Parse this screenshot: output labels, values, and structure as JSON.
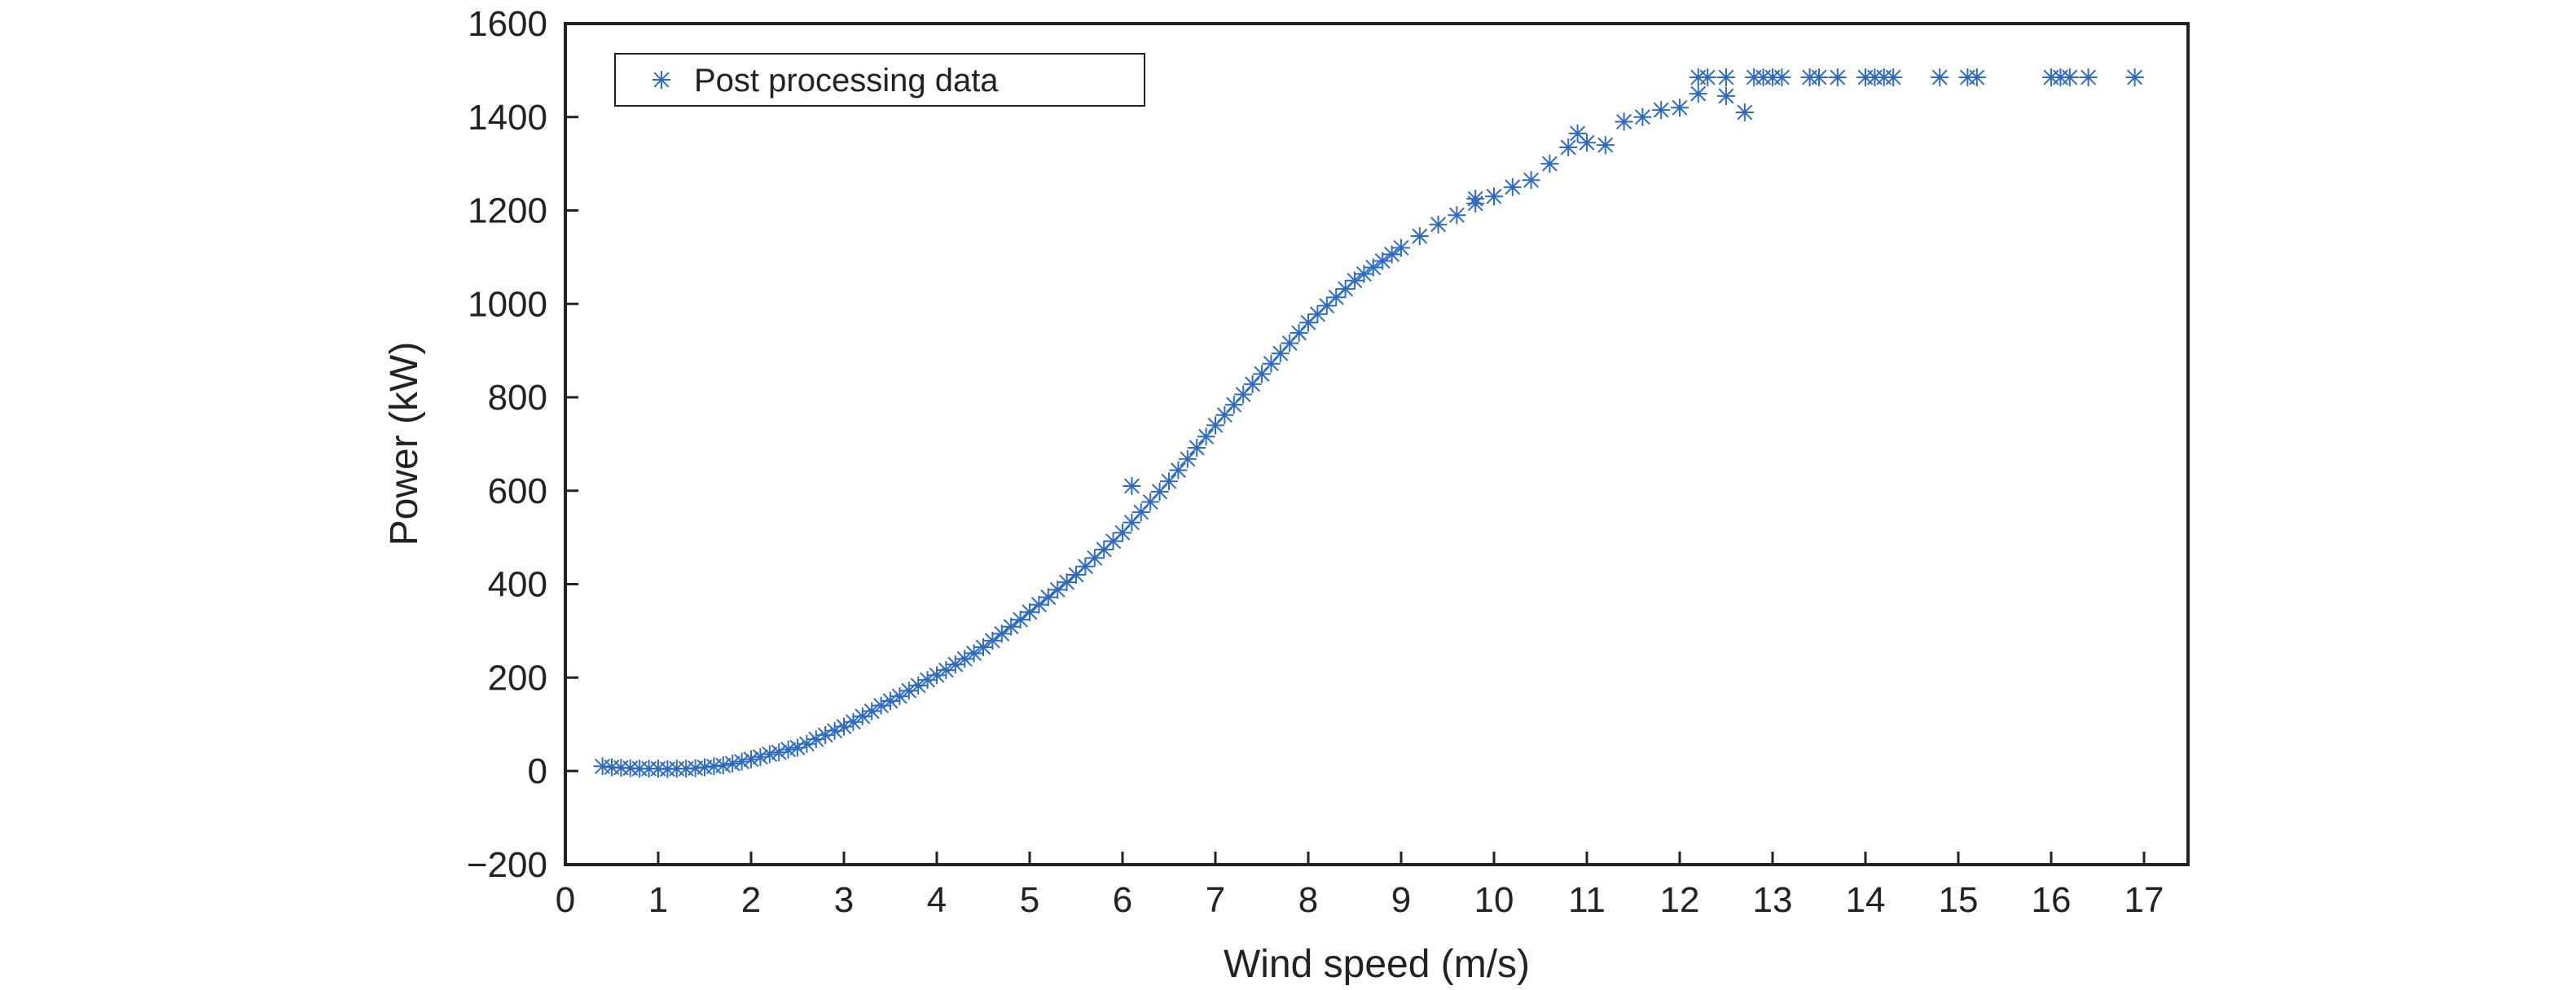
{
  "chart_data": {
    "type": "scatter",
    "title": "",
    "xlabel": "Wind speed (m/s)",
    "ylabel": "Power (kW)",
    "xlim": [
      0,
      17.3
    ],
    "ylim": [
      -200,
      1600
    ],
    "xticks": [
      0,
      1,
      2,
      3,
      4,
      5,
      6,
      7,
      8,
      9,
      10,
      11,
      12,
      13,
      14,
      15,
      16,
      17
    ],
    "yticks": [
      -200,
      0,
      200,
      400,
      600,
      800,
      1000,
      1200,
      1400,
      1600
    ],
    "ytick_labels": [
      "−200",
      "0",
      "200",
      "400",
      "600",
      "800",
      "1000",
      "1200",
      "1400",
      "1600"
    ],
    "grid": false,
    "legend": {
      "placement": "top-left",
      "entries": [
        "Post processing data"
      ]
    },
    "series": [
      {
        "name": "Post processing data",
        "marker": "asterisk",
        "color": "#2f6bbd",
        "points": [
          [
            0.4,
            10
          ],
          [
            0.5,
            8
          ],
          [
            0.6,
            7
          ],
          [
            0.7,
            6
          ],
          [
            0.8,
            5
          ],
          [
            0.9,
            5
          ],
          [
            1.0,
            5
          ],
          [
            1.1,
            4
          ],
          [
            1.2,
            5
          ],
          [
            1.3,
            5
          ],
          [
            1.4,
            6
          ],
          [
            1.5,
            8
          ],
          [
            1.6,
            10
          ],
          [
            1.7,
            12
          ],
          [
            1.8,
            16
          ],
          [
            1.9,
            20
          ],
          [
            2.0,
            25
          ],
          [
            2.1,
            30
          ],
          [
            2.2,
            36
          ],
          [
            2.3,
            40
          ],
          [
            2.4,
            46
          ],
          [
            2.5,
            50
          ],
          [
            2.6,
            58
          ],
          [
            2.7,
            68
          ],
          [
            2.8,
            77
          ],
          [
            2.9,
            86
          ],
          [
            3.0,
            95
          ],
          [
            3.1,
            105
          ],
          [
            3.2,
            117
          ],
          [
            3.3,
            128
          ],
          [
            3.4,
            140
          ],
          [
            3.5,
            150
          ],
          [
            3.6,
            160
          ],
          [
            3.7,
            172
          ],
          [
            3.8,
            183
          ],
          [
            3.9,
            195
          ],
          [
            4.0,
            205
          ],
          [
            4.1,
            216
          ],
          [
            4.2,
            228
          ],
          [
            4.3,
            240
          ],
          [
            4.4,
            252
          ],
          [
            4.5,
            265
          ],
          [
            4.6,
            279
          ],
          [
            4.7,
            294
          ],
          [
            4.8,
            309
          ],
          [
            4.9,
            324
          ],
          [
            5.0,
            340
          ],
          [
            5.1,
            356
          ],
          [
            5.2,
            372
          ],
          [
            5.3,
            388
          ],
          [
            5.4,
            404
          ],
          [
            5.5,
            420
          ],
          [
            5.6,
            438
          ],
          [
            5.7,
            456
          ],
          [
            5.8,
            474
          ],
          [
            5.9,
            492
          ],
          [
            6.0,
            510
          ],
          [
            6.1,
            532
          ],
          [
            6.1,
            610
          ],
          [
            6.2,
            554
          ],
          [
            6.3,
            576
          ],
          [
            6.4,
            598
          ],
          [
            6.5,
            620
          ],
          [
            6.6,
            644
          ],
          [
            6.7,
            668
          ],
          [
            6.8,
            692
          ],
          [
            6.9,
            716
          ],
          [
            7.0,
            740
          ],
          [
            7.1,
            762
          ],
          [
            7.2,
            784
          ],
          [
            7.3,
            806
          ],
          [
            7.4,
            828
          ],
          [
            7.5,
            850
          ],
          [
            7.6,
            872
          ],
          [
            7.7,
            894
          ],
          [
            7.8,
            916
          ],
          [
            7.9,
            938
          ],
          [
            8.0,
            960
          ],
          [
            8.1,
            978
          ],
          [
            8.2,
            996
          ],
          [
            8.3,
            1014
          ],
          [
            8.4,
            1032
          ],
          [
            8.5,
            1050
          ],
          [
            8.6,
            1064
          ],
          [
            8.7,
            1078
          ],
          [
            8.8,
            1092
          ],
          [
            8.9,
            1106
          ],
          [
            9.0,
            1120
          ],
          [
            9.2,
            1145
          ],
          [
            9.4,
            1170
          ],
          [
            9.6,
            1190
          ],
          [
            9.8,
            1215
          ],
          [
            9.8,
            1225
          ],
          [
            10.0,
            1230
          ],
          [
            10.2,
            1250
          ],
          [
            10.4,
            1265
          ],
          [
            10.6,
            1300
          ],
          [
            10.8,
            1335
          ],
          [
            10.9,
            1365
          ],
          [
            11.0,
            1345
          ],
          [
            11.2,
            1340
          ],
          [
            11.4,
            1390
          ],
          [
            11.6,
            1400
          ],
          [
            11.8,
            1415
          ],
          [
            12.0,
            1420
          ],
          [
            12.2,
            1450
          ],
          [
            12.5,
            1445
          ],
          [
            12.7,
            1410
          ],
          [
            12.2,
            1485
          ],
          [
            12.3,
            1485
          ],
          [
            12.5,
            1485
          ],
          [
            12.8,
            1485
          ],
          [
            12.9,
            1485
          ],
          [
            13.0,
            1485
          ],
          [
            13.1,
            1485
          ],
          [
            13.4,
            1485
          ],
          [
            13.5,
            1485
          ],
          [
            13.7,
            1485
          ],
          [
            14.0,
            1485
          ],
          [
            14.1,
            1485
          ],
          [
            14.2,
            1485
          ],
          [
            14.3,
            1485
          ],
          [
            14.8,
            1485
          ],
          [
            15.1,
            1485
          ],
          [
            15.2,
            1485
          ],
          [
            16.0,
            1485
          ],
          [
            16.1,
            1485
          ],
          [
            16.2,
            1485
          ],
          [
            16.4,
            1485
          ],
          [
            16.9,
            1485
          ]
        ]
      }
    ]
  }
}
